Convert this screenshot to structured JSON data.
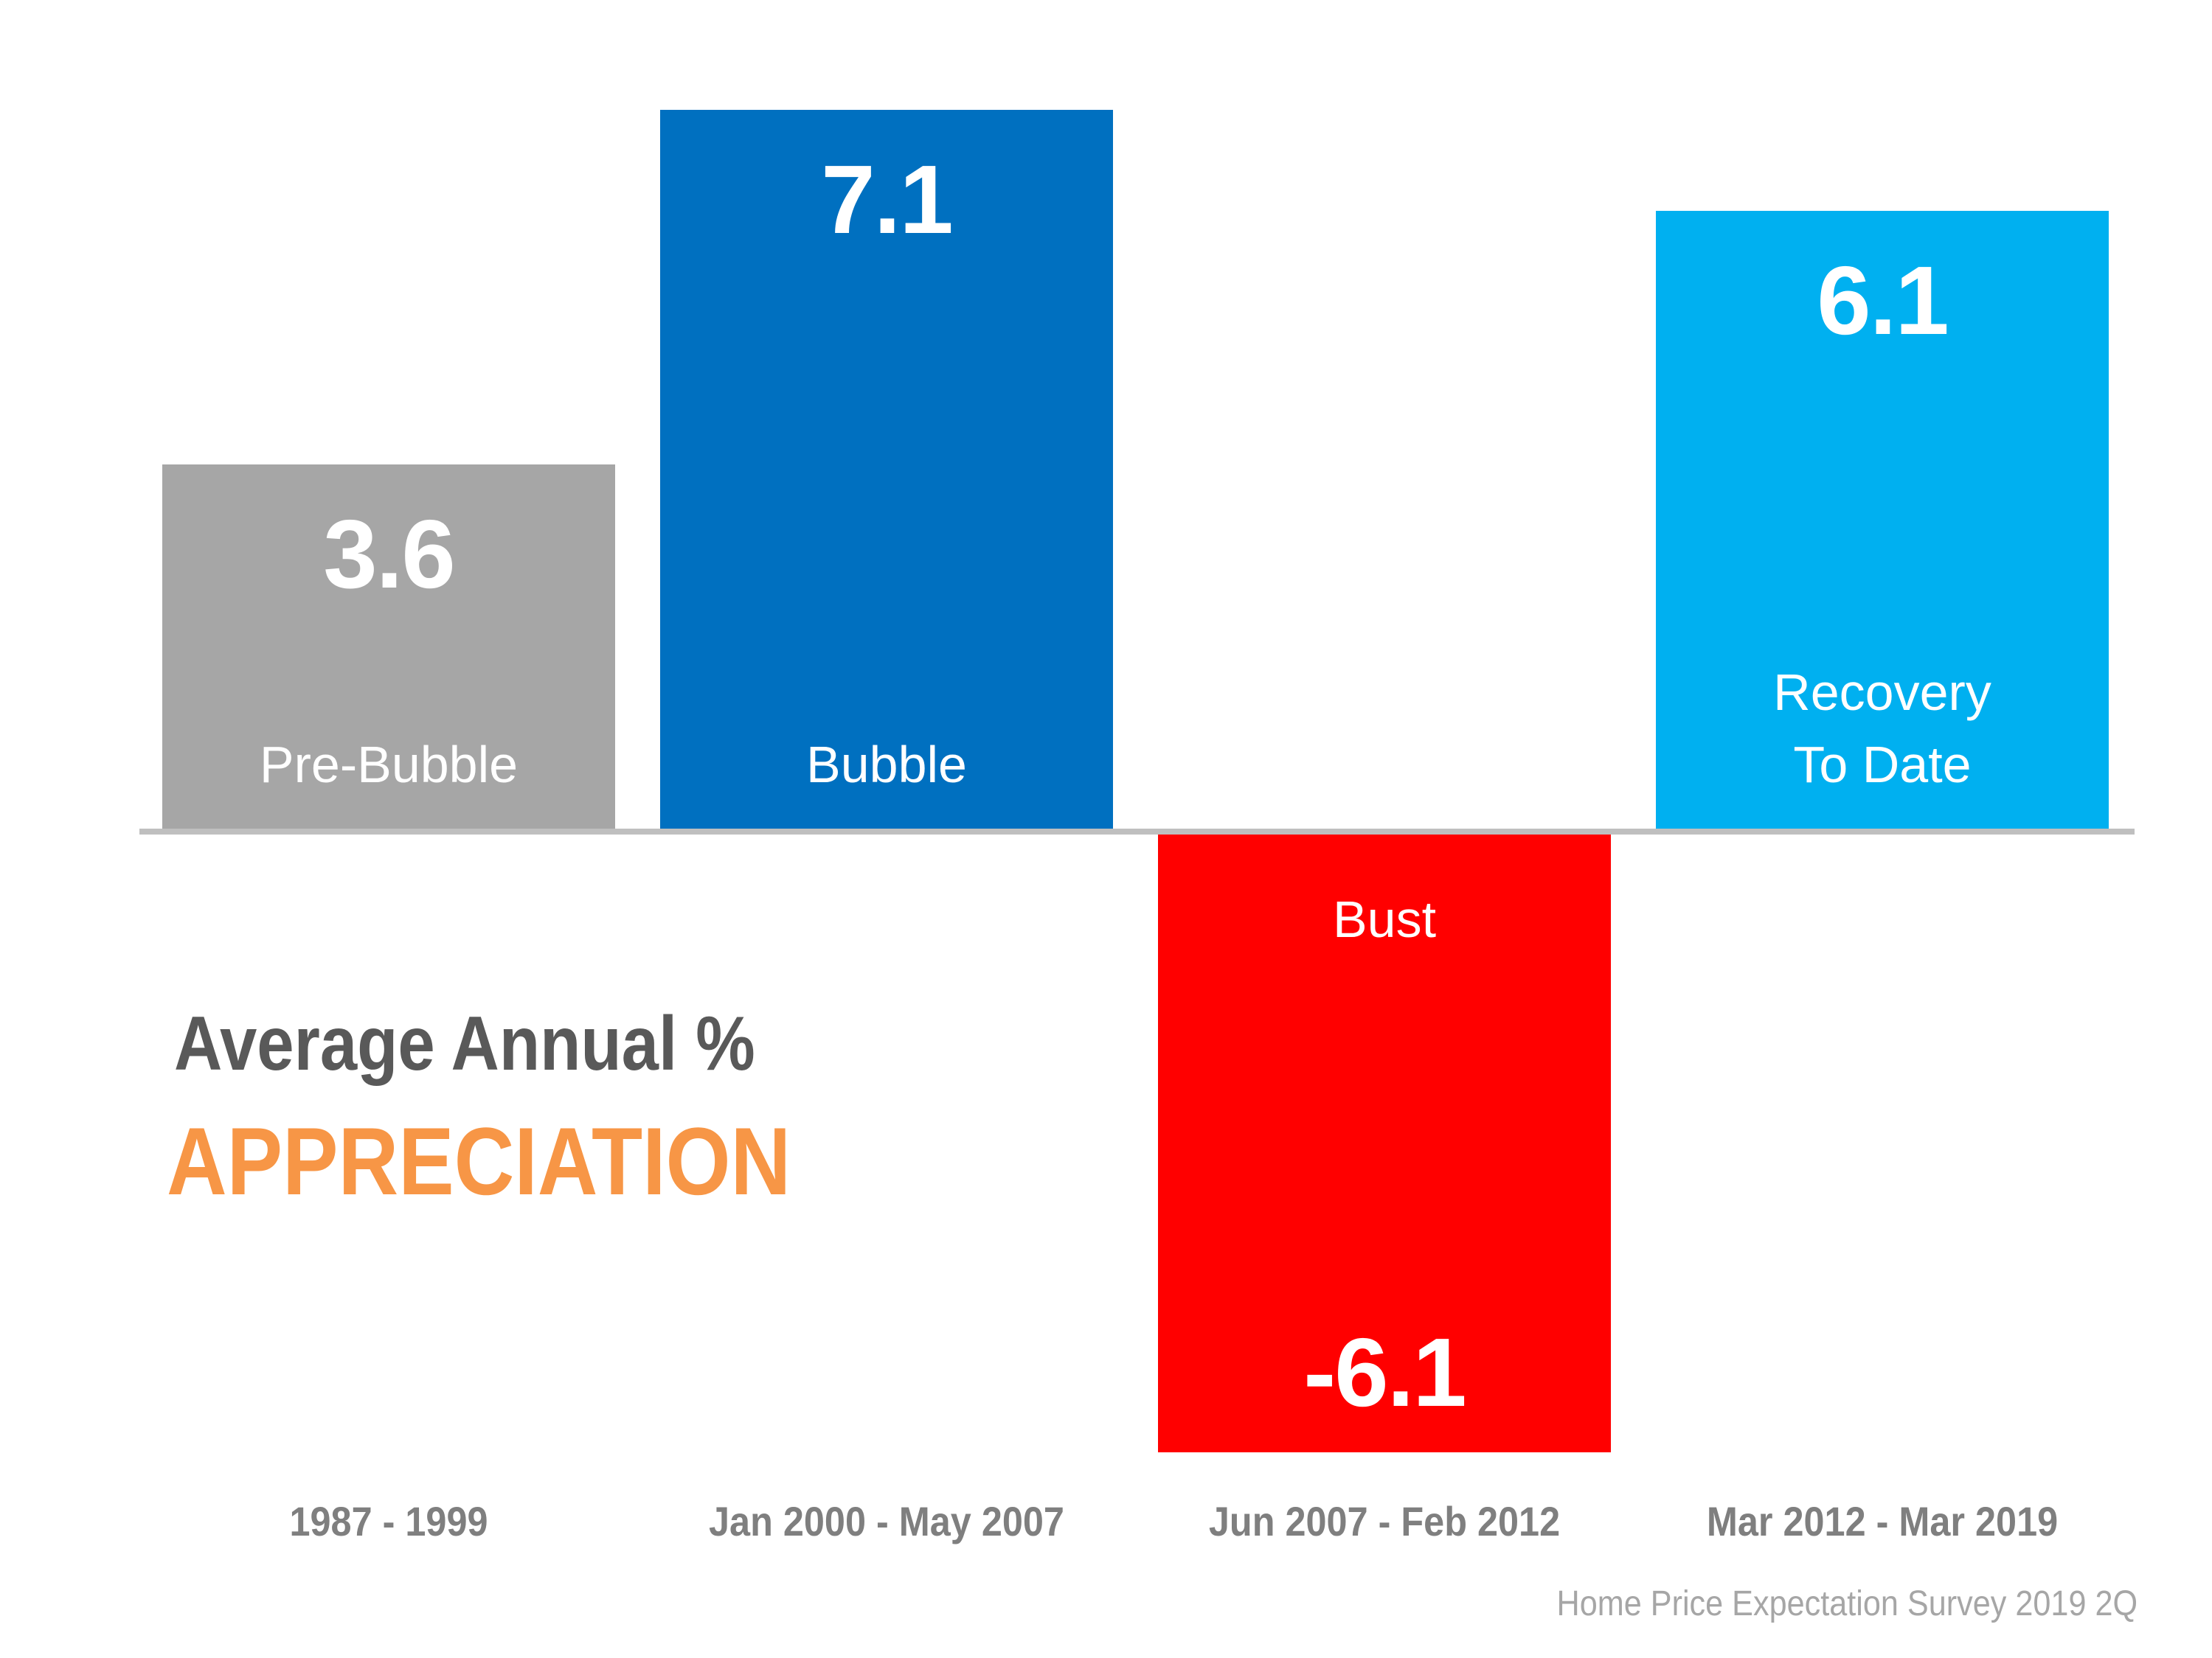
{
  "chart_data": {
    "type": "bar",
    "title": "Average Annual % APPRECIATION",
    "title_line1": "Average Annual %",
    "title_line2": "APPRECIATION",
    "xlabel": "",
    "ylabel": "",
    "grid": false,
    "legend": "none",
    "ylim": [
      -6.1,
      7.1
    ],
    "categories": [
      "1987 - 1999",
      "Jan 2000 - May 2007",
      "Jun 2007 - Feb 2012",
      "Mar 2012 - Mar 2019"
    ],
    "bar_names": [
      "Pre-Bubble",
      "Bubble",
      "Bust",
      "Recovery\nTo Date"
    ],
    "values": [
      3.6,
      7.1,
      -6.1,
      6.1
    ],
    "value_labels": [
      "3.6",
      "7.1",
      "-6.1",
      "6.1"
    ],
    "colors": [
      "#A6A6A6",
      "#0070C0",
      "#FF0000",
      "#00B0F0"
    ],
    "source": "Home Price Expectation Survey 2019 2Q"
  },
  "colors": {
    "title_line1": "#595959",
    "title_line2": "#F79646",
    "axis": "#BFBFBF",
    "period_label": "#7F7F7F",
    "source": "#A6A6A6"
  }
}
